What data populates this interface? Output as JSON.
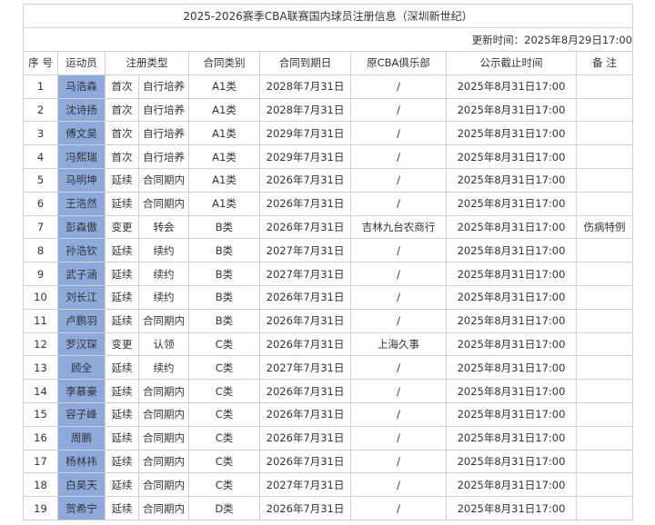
{
  "title": "2025-2026赛季CBA联赛国内球员注册信息（深圳新世纪）",
  "updated": "更新时间：2025年8月29日17:00",
  "headers": {
    "no": "序 号",
    "player": "运动员",
    "reg_type": "注册类型",
    "contract_class": "合同类别",
    "expiry": "合同到期日",
    "prev_club": "原CBA俱乐部",
    "deadline": "公示截止时间",
    "remark": "备 注"
  },
  "rows": [
    [
      "1",
      "马浩森",
      "首次",
      "自行培养",
      "A1类",
      "2028年7月31日",
      "/",
      "2025年8月31日17:00",
      ""
    ],
    [
      "2",
      "沈诗扬",
      "首次",
      "自行培养",
      "A1类",
      "2028年7月31日",
      "/",
      "2025年8月31日17:00",
      ""
    ],
    [
      "3",
      "傅文昊",
      "首次",
      "自行培养",
      "A1类",
      "2029年7月31日",
      "/",
      "2025年8月31日17:00",
      ""
    ],
    [
      "4",
      "冯熙瑞",
      "首次",
      "自行培养",
      "A1类",
      "2029年7月31日",
      "/",
      "2025年8月31日17:00",
      ""
    ],
    [
      "5",
      "马明坤",
      "延续",
      "合同期内",
      "A1类",
      "2026年7月31日",
      "/",
      "2025年8月31日17:00",
      ""
    ],
    [
      "6",
      "王浩然",
      "延续",
      "合同期内",
      "A1类",
      "2026年7月31日",
      "/",
      "2025年8月31日17:00",
      ""
    ],
    [
      "7",
      "彭森傲",
      "变更",
      "转会",
      "B类",
      "2026年7月31日",
      "吉林九台农商行",
      "2025年8月31日17:00",
      "伤病特例"
    ],
    [
      "8",
      "孙浩钦",
      "延续",
      "续约",
      "B类",
      "2027年7月31日",
      "/",
      "2025年8月31日17:00",
      ""
    ],
    [
      "9",
      "武子涵",
      "延续",
      "续约",
      "B类",
      "2027年7月31日",
      "/",
      "2025年8月31日17:00",
      ""
    ],
    [
      "10",
      "刘长江",
      "延续",
      "续约",
      "B类",
      "2026年7月31日",
      "/",
      "2025年8月31日17:00",
      ""
    ],
    [
      "11",
      "卢鹏羽",
      "延续",
      "合同期内",
      "B类",
      "2026年7月31日",
      "/",
      "2025年8月31日17:00",
      ""
    ],
    [
      "12",
      "罗汉琛",
      "变更",
      "认领",
      "C类",
      "2026年7月31日",
      "上海久事",
      "2025年8月31日17:00",
      ""
    ],
    [
      "13",
      "顾全",
      "延续",
      "续约",
      "C类",
      "2027年7月31日",
      "/",
      "2025年8月31日17:00",
      ""
    ],
    [
      "14",
      "李慕豪",
      "延续",
      "合同期内",
      "C类",
      "2026年7月31日",
      "/",
      "2025年8月31日17:00",
      ""
    ],
    [
      "15",
      "容子峰",
      "延续",
      "合同期内",
      "C类",
      "2026年7月31日",
      "/",
      "2025年8月31日17:00",
      ""
    ],
    [
      "16",
      "周鹏",
      "延续",
      "合同期内",
      "C类",
      "2026年7月31日",
      "/",
      "2025年8月31日17:00",
      ""
    ],
    [
      "17",
      "杨林祎",
      "延续",
      "合同期内",
      "C类",
      "2026年7月31日",
      "/",
      "2025年8月31日17:00",
      ""
    ],
    [
      "18",
      "白昊天",
      "延续",
      "合同期内",
      "C类",
      "2027年7月31日",
      "/",
      "2025年8月31日17:00",
      ""
    ],
    [
      "19",
      "贺希宁",
      "延续",
      "合同期内",
      "D类",
      "2026年7月31日",
      "/",
      "2025年8月31日17:00",
      ""
    ]
  ],
  "colors": {
    "name_bg": "#8eaadb",
    "border": "#d0d0d0"
  }
}
